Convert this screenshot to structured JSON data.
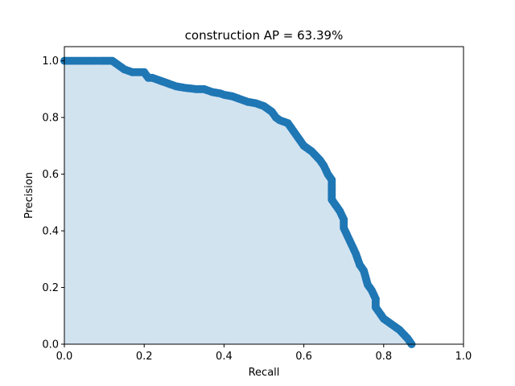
{
  "chart_data": {
    "type": "area",
    "title": "construction AP = 63.39%",
    "xlabel": "Recall",
    "ylabel": "Precision",
    "xlim": [
      0,
      1
    ],
    "ylim": [
      0,
      1.05
    ],
    "xticks": [
      0.0,
      0.2,
      0.4,
      0.6,
      0.8,
      1.0
    ],
    "xtick_labels": [
      "0.0",
      "0.2",
      "0.4",
      "0.6",
      "0.8",
      "1.0"
    ],
    "yticks": [
      0.0,
      0.2,
      0.4,
      0.6,
      0.8,
      1.0
    ],
    "ytick_labels": [
      "0.0",
      "0.2",
      "0.4",
      "0.6",
      "0.8",
      "1.0"
    ],
    "grid": false,
    "line_color": "#1f77b4",
    "fill_color": "#d2e3f0",
    "series": [
      {
        "recall": [
          0.0,
          0.05,
          0.1,
          0.12,
          0.13,
          0.14,
          0.15,
          0.17,
          0.19,
          0.2,
          0.21,
          0.22,
          0.24,
          0.26,
          0.28,
          0.3,
          0.33,
          0.35,
          0.37,
          0.39,
          0.4,
          0.42,
          0.44,
          0.46,
          0.48,
          0.5,
          0.51,
          0.52,
          0.53,
          0.54,
          0.55,
          0.56,
          0.57,
          0.58,
          0.59,
          0.6,
          0.62,
          0.64,
          0.65,
          0.66,
          0.67,
          0.67,
          0.68,
          0.69,
          0.7,
          0.7,
          0.71,
          0.72,
          0.73,
          0.74,
          0.75,
          0.76,
          0.77,
          0.78,
          0.78,
          0.79,
          0.8,
          0.82,
          0.84,
          0.86,
          0.87
        ],
        "precision": [
          1.0,
          1.0,
          1.0,
          1.0,
          0.99,
          0.98,
          0.97,
          0.96,
          0.96,
          0.96,
          0.94,
          0.94,
          0.93,
          0.92,
          0.91,
          0.905,
          0.9,
          0.9,
          0.89,
          0.885,
          0.88,
          0.875,
          0.865,
          0.855,
          0.85,
          0.84,
          0.83,
          0.82,
          0.8,
          0.79,
          0.785,
          0.78,
          0.76,
          0.74,
          0.72,
          0.7,
          0.68,
          0.65,
          0.63,
          0.6,
          0.58,
          0.51,
          0.49,
          0.47,
          0.44,
          0.41,
          0.38,
          0.35,
          0.32,
          0.28,
          0.26,
          0.21,
          0.19,
          0.16,
          0.13,
          0.11,
          0.09,
          0.07,
          0.05,
          0.02,
          0.0
        ]
      }
    ]
  }
}
